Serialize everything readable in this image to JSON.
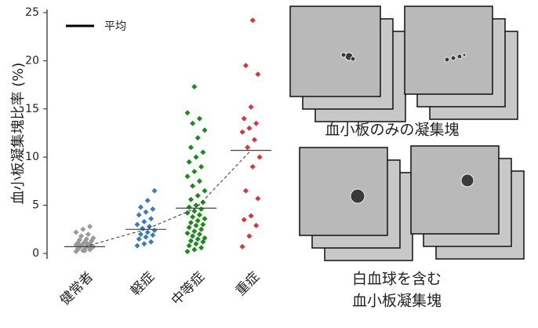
{
  "chart_data": {
    "type": "strip",
    "ylabel": "血小板凝集塊比率 (%)",
    "legend_label": "平均",
    "categories": [
      "健常者",
      "軽症",
      "中等症",
      "重症"
    ],
    "ylim": [
      0,
      25
    ],
    "yticks": [
      0,
      5,
      10,
      15,
      20,
      25
    ],
    "series": [
      {
        "color": "#999999",
        "mean": 0.7,
        "values": [
          0.2,
          0.3,
          0.4,
          0.5,
          0.5,
          0.6,
          0.6,
          0.7,
          0.7,
          0.8,
          0.8,
          0.9,
          1.0,
          1.0,
          1.1,
          1.2,
          1.3,
          1.4,
          1.5,
          1.6,
          1.8,
          2.0,
          2.2,
          2.5,
          2.8,
          0.4,
          0.3,
          0.6,
          0.9,
          1.1
        ]
      },
      {
        "color": "#3a7bbf",
        "mean": 2.5,
        "values": [
          0.8,
          1.0,
          1.2,
          1.5,
          1.7,
          1.9,
          2.0,
          2.2,
          2.4,
          2.6,
          2.8,
          3.0,
          3.3,
          3.6,
          4.0,
          4.3,
          4.6,
          4.8,
          5.5,
          6.5
        ]
      },
      {
        "color": "#1a8a1a",
        "mean": 4.7,
        "values": [
          0.2,
          0.4,
          0.6,
          0.8,
          1.0,
          1.2,
          1.3,
          1.5,
          1.6,
          1.8,
          2.0,
          2.1,
          2.3,
          2.5,
          2.7,
          2.9,
          3.0,
          3.2,
          3.4,
          3.6,
          3.8,
          4.0,
          4.2,
          4.4,
          4.6,
          4.8,
          5.0,
          5.3,
          5.6,
          6.0,
          6.5,
          7.0,
          7.5,
          8.0,
          8.5,
          9.0,
          9.5,
          10.0,
          10.5,
          11.0,
          12.0,
          12.8,
          13.5,
          14.0,
          14.6,
          17.3
        ]
      },
      {
        "color": "#d9333f",
        "mean": 10.7,
        "values": [
          0.7,
          1.8,
          2.9,
          3.5,
          3.9,
          5.7,
          6.5,
          9.0,
          10.0,
          11.0,
          11.8,
          12.6,
          13.0,
          13.5,
          14.0,
          15.2,
          18.6,
          19.5,
          24.2
        ]
      }
    ]
  },
  "captions": {
    "platelet_only": "血小板のみの凝集塊",
    "with_leukocyte": [
      "白血球を含む",
      "血小板凝集塊"
    ]
  }
}
